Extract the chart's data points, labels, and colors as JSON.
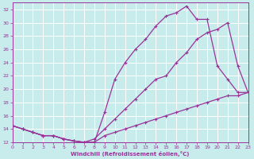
{
  "xlabel": "Windchill (Refroidissement éolien,°C)",
  "bg_color": "#c8ecec",
  "line_color": "#993399",
  "grid_color": "#ffffff",
  "xmin": 0,
  "xmax": 23,
  "ymin": 12,
  "ymax": 33,
  "yticks": [
    12,
    14,
    16,
    18,
    20,
    22,
    24,
    26,
    28,
    30,
    32
  ],
  "xticks": [
    0,
    1,
    2,
    3,
    4,
    5,
    6,
    7,
    8,
    9,
    10,
    11,
    12,
    13,
    14,
    15,
    16,
    17,
    18,
    19,
    20,
    21,
    22,
    23
  ],
  "line1_x": [
    0,
    1,
    2,
    3,
    4,
    5,
    6,
    7,
    8,
    9,
    10,
    11,
    12,
    13,
    14,
    15,
    16,
    17,
    18,
    19,
    20,
    21,
    22,
    23
  ],
  "line1_y": [
    14.5,
    14.0,
    13.5,
    13.0,
    13.0,
    12.5,
    12.2,
    12.0,
    12.0,
    13.0,
    13.5,
    14.0,
    14.5,
    15.0,
    15.5,
    16.0,
    16.5,
    17.0,
    17.5,
    18.0,
    18.5,
    19.0,
    19.0,
    19.5
  ],
  "line2_x": [
    0,
    1,
    2,
    3,
    4,
    5,
    6,
    7,
    8,
    9,
    10,
    11,
    12,
    13,
    14,
    15,
    16,
    17,
    18,
    19,
    20,
    21,
    22,
    23
  ],
  "line2_y": [
    14.5,
    14.0,
    13.5,
    13.0,
    13.0,
    12.5,
    12.2,
    12.0,
    12.0,
    16.5,
    21.5,
    24.0,
    26.0,
    27.5,
    29.5,
    31.0,
    31.5,
    32.5,
    30.5,
    30.5,
    23.5,
    21.5,
    19.5,
    19.5
  ],
  "line3_x": [
    0,
    1,
    2,
    3,
    4,
    5,
    6,
    7,
    8,
    9,
    10,
    11,
    12,
    13,
    14,
    15,
    16,
    17,
    18,
    19,
    20,
    21,
    22,
    23
  ],
  "line3_y": [
    14.5,
    14.0,
    13.5,
    13.0,
    13.0,
    12.5,
    12.2,
    12.0,
    12.5,
    14.0,
    15.5,
    17.0,
    18.5,
    20.0,
    21.5,
    22.0,
    24.0,
    25.5,
    27.5,
    28.5,
    29.0,
    30.0,
    23.5,
    19.5
  ]
}
